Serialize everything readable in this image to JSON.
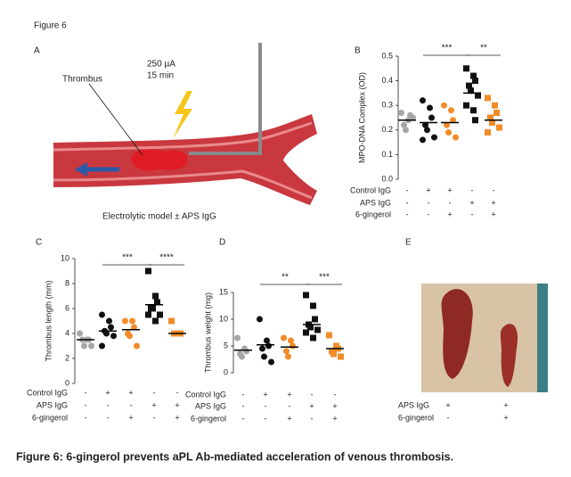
{
  "figure_label": "Figure 6",
  "caption": "Figure 6: 6-gingerol prevents aPL Ab-mediated acceleration of venous thrombosis.",
  "panel_a": {
    "letter": "A",
    "current": "250 µA",
    "duration": "15 min",
    "thrombus_label": "Thrombus",
    "model": "Electrolytic model ± APS IgG"
  },
  "chart_data": [
    {
      "type": "dot",
      "panel_letter": "B",
      "y_label": "MPO-DNA Complex (OD)",
      "ylim": [
        0,
        0.5
      ],
      "yticks": [
        {
          "value": 0,
          "label": "0.0"
        },
        0.1,
        0.2,
        0.3,
        0.4,
        0.5
      ],
      "series": [
        {
          "color": "#a6a6a6",
          "marker": "circle",
          "values": [
            0.27,
            0.24,
            0.26,
            0.22,
            0.2,
            0.25
          ],
          "mean": 0.24
        },
        {
          "color": "#111111",
          "marker": "circle",
          "values": [
            0.32,
            0.29,
            0.25,
            0.22,
            0.2,
            0.17,
            0.16
          ],
          "mean": 0.23
        },
        {
          "color": "#f28c28",
          "marker": "circle",
          "values": [
            0.3,
            0.28,
            0.24,
            0.22,
            0.19,
            0.17
          ],
          "mean": 0.23
        },
        {
          "color": "#111111",
          "marker": "square",
          "values": [
            0.45,
            0.42,
            0.4,
            0.38,
            0.36,
            0.34,
            0.3,
            0.28,
            0.24
          ],
          "mean": 0.35
        },
        {
          "color": "#f28c28",
          "marker": "square",
          "values": [
            0.33,
            0.3,
            0.27,
            0.25,
            0.23,
            0.21,
            0.19
          ],
          "mean": 0.24
        }
      ],
      "annotations": [
        "***",
        "**"
      ],
      "conditions": [
        {
          "name": "Control IgG",
          "signs": [
            "-",
            "+",
            "+",
            "-",
            "-"
          ]
        },
        {
          "name": "APS IgG",
          "signs": [
            "-",
            "-",
            "-",
            "+",
            "+"
          ]
        },
        {
          "name": "6-gingerol",
          "signs": [
            "-",
            "-",
            "+",
            "-",
            "+"
          ]
        }
      ]
    },
    {
      "type": "dot",
      "panel_letter": "C",
      "y_label": "Thrombus length (mm)",
      "ylim": [
        0,
        10
      ],
      "yticks": [
        0,
        2,
        4,
        6,
        8,
        10
      ],
      "series": [
        {
          "color": "#a6a6a6",
          "marker": "circle",
          "values": [
            4,
            3.5,
            3.5,
            3.5,
            3,
            3
          ],
          "mean": 3.5
        },
        {
          "color": "#111111",
          "marker": "circle",
          "values": [
            5.5,
            5,
            4.5,
            4.2,
            4,
            3.8,
            3
          ],
          "mean": 4.2
        },
        {
          "color": "#f28c28",
          "marker": "circle",
          "values": [
            5,
            5,
            4.5,
            4,
            3.8,
            3
          ],
          "mean": 4.3
        },
        {
          "color": "#111111",
          "marker": "square",
          "values": [
            9,
            7,
            6.5,
            6,
            6,
            5.5,
            5.5,
            5
          ],
          "mean": 6.3
        },
        {
          "color": "#f28c28",
          "marker": "square",
          "values": [
            5,
            4,
            4,
            4,
            4
          ],
          "mean": 4
        }
      ],
      "annotations": [
        "***",
        "****"
      ],
      "conditions": [
        {
          "name": "Control IgG",
          "signs": [
            "-",
            "+",
            "+",
            "-",
            "-"
          ]
        },
        {
          "name": "APS IgG",
          "signs": [
            "-",
            "-",
            "-",
            "+",
            "+"
          ]
        },
        {
          "name": "6-gingerol",
          "signs": [
            "-",
            "-",
            "+",
            "-",
            "+"
          ]
        }
      ]
    },
    {
      "type": "dot",
      "panel_letter": "D",
      "y_label": "Thrombus weight (mg)",
      "ylim": [
        0,
        15
      ],
      "yticks": [
        0,
        5,
        10,
        15
      ],
      "series": [
        {
          "color": "#a6a6a6",
          "marker": "circle",
          "values": [
            6.5,
            4.5,
            4,
            3.5,
            3
          ],
          "mean": 4.2
        },
        {
          "color": "#111111",
          "marker": "circle",
          "values": [
            10,
            6,
            5,
            4.5,
            3,
            2
          ],
          "mean": 5.2
        },
        {
          "color": "#f28c28",
          "marker": "circle",
          "values": [
            6.5,
            6,
            5,
            4,
            3
          ],
          "mean": 4.8
        },
        {
          "color": "#111111",
          "marker": "square",
          "values": [
            14.5,
            12.5,
            10,
            9,
            8.5,
            8,
            7.5,
            6.5
          ],
          "mean": 9
        },
        {
          "color": "#f28c28",
          "marker": "square",
          "values": [
            7,
            5,
            4.5,
            4,
            3.5,
            3
          ],
          "mean": 4.5
        }
      ],
      "annotations": [
        "**",
        "***"
      ],
      "conditions": [
        {
          "name": "Control IgG",
          "signs": [
            "-",
            "+",
            "+",
            "-",
            "-"
          ]
        },
        {
          "name": "APS IgG",
          "signs": [
            "-",
            "-",
            "-",
            "+",
            "+"
          ]
        },
        {
          "name": "6-gingerol",
          "signs": [
            "-",
            "-",
            "+",
            "-",
            "+"
          ]
        }
      ]
    }
  ],
  "panel_e": {
    "letter": "E",
    "conditions": [
      {
        "name": "APS IgG",
        "signs": [
          "+",
          "+"
        ]
      },
      {
        "name": "6-gingerol",
        "signs": [
          "-",
          "+"
        ]
      }
    ]
  }
}
